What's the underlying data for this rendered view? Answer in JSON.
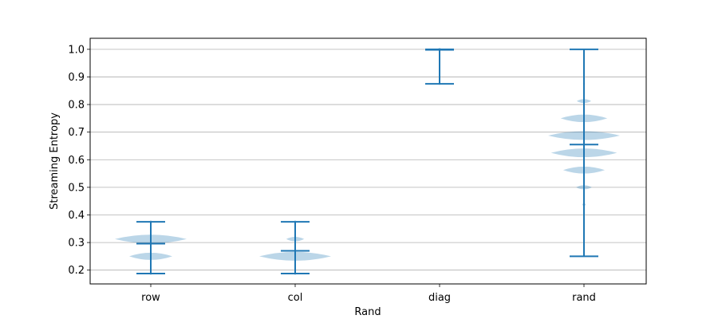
{
  "chart_data": {
    "type": "violin",
    "title": "",
    "xlabel": "Rand",
    "ylabel": "Streaming Entropy",
    "categories": [
      "row",
      "col",
      "diag",
      "rand"
    ],
    "ylim": [
      0.15,
      1.04
    ],
    "yticks": [
      0.2,
      0.3,
      0.4,
      0.5,
      0.6,
      0.7,
      0.8,
      0.9,
      1.0
    ],
    "ytick_labels": [
      "0.2",
      "0.3",
      "0.4",
      "0.5",
      "0.6",
      "0.7",
      "0.8",
      "0.9",
      "1.0"
    ],
    "grid": "y",
    "colors": {
      "line": "#1f77b4",
      "fill": "#1f77b4",
      "grid": "#b0b0b0",
      "axes": "#000000"
    },
    "series": [
      {
        "category": "row",
        "min": 0.1875,
        "max": 0.375,
        "mean": 0.296,
        "density": [
          [
            0.1875,
            0.03
          ],
          [
            0.25,
            0.6
          ],
          [
            0.3125,
            1.0
          ],
          [
            0.375,
            0.03
          ]
        ]
      },
      {
        "category": "col",
        "min": 0.1875,
        "max": 0.375,
        "mean": 0.27,
        "density": [
          [
            0.1875,
            0.03
          ],
          [
            0.25,
            1.0
          ],
          [
            0.3125,
            0.25
          ],
          [
            0.375,
            0.03
          ]
        ]
      },
      {
        "category": "diag",
        "min": 0.875,
        "max": 1.0,
        "mean": 0.998,
        "density": [
          [
            0.875,
            0.01
          ],
          [
            1.0,
            0.05
          ]
        ]
      },
      {
        "category": "rand",
        "min": 0.25,
        "max": 1.0,
        "mean": 0.655,
        "density": [
          [
            0.4375,
            0.05
          ],
          [
            0.5,
            0.22
          ],
          [
            0.5625,
            0.58
          ],
          [
            0.625,
            0.92
          ],
          [
            0.6875,
            1.0
          ],
          [
            0.75,
            0.65
          ],
          [
            0.8125,
            0.2
          ],
          [
            0.875,
            0.03
          ]
        ]
      }
    ]
  }
}
